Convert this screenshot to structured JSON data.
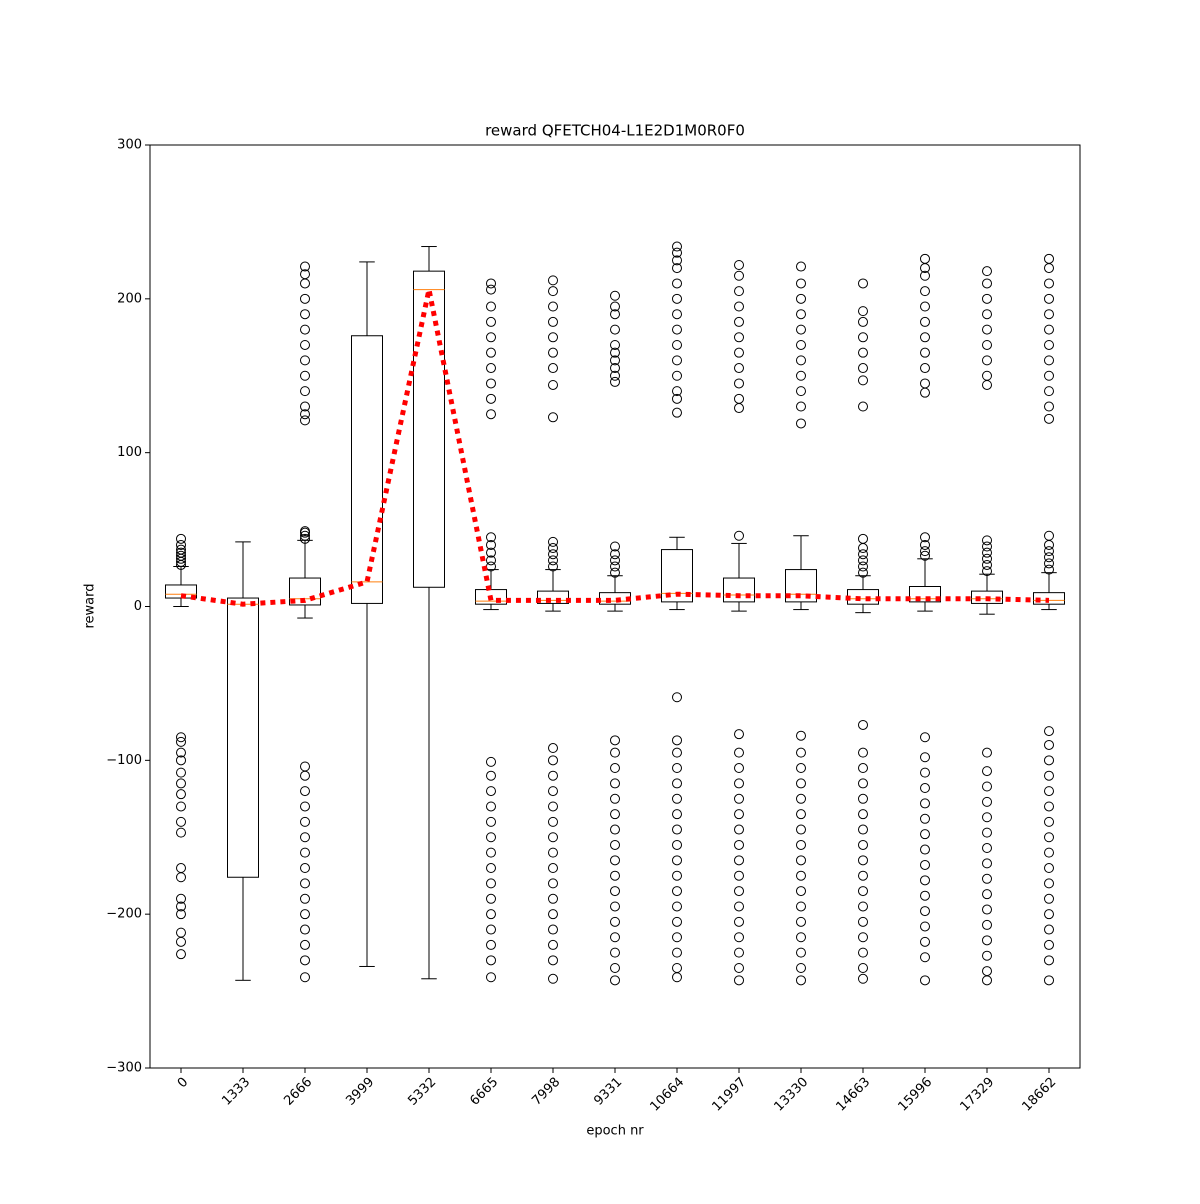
{
  "chart_data": {
    "type": "box",
    "title": "reward QFETCH04-L1E2D1M0R0F0",
    "x_label": "epoch nr",
    "y_label": "reward",
    "categories": [
      "0",
      "1333",
      "2666",
      "3999",
      "5332",
      "6665",
      "7998",
      "9331",
      "10664",
      "11997",
      "13330",
      "14663",
      "15996",
      "17329",
      "18662"
    ],
    "ylim": [
      -300,
      300
    ],
    "yticks": [
      {
        "value": -300,
        "label": "−300"
      },
      {
        "value": -200,
        "label": "−200"
      },
      {
        "value": -100,
        "label": "−100"
      },
      0,
      100,
      200,
      300
    ],
    "box_color": "#000000",
    "median_color": "#ff7f0e",
    "mean_color": "#ff0000",
    "boxes": [
      {
        "whislo": 0,
        "q1": 5.5,
        "med": 8,
        "q3": 14,
        "whishi": 26,
        "fliers": [
          27,
          29,
          31,
          33,
          35,
          37,
          40,
          44,
          -85,
          -88,
          -95,
          -100,
          -108,
          -115,
          -122,
          -130,
          -140,
          -147,
          -170,
          -176,
          -190,
          -195,
          -200,
          -212,
          -218,
          -226
        ]
      },
      {
        "whislo": -243,
        "q1": -176,
        "med": 1.5,
        "q3": 5.5,
        "whishi": 42,
        "fliers": []
      },
      {
        "whislo": -7.5,
        "q1": 1,
        "med": 5,
        "q3": 18.5,
        "whishi": 43,
        "fliers": [
          44,
          46,
          48,
          49,
          121,
          125,
          130,
          140,
          150,
          160,
          170,
          180,
          190,
          200,
          210,
          216,
          221,
          -104,
          -110,
          -120,
          -130,
          -140,
          -150,
          -160,
          -170,
          -180,
          -190,
          -200,
          -210,
          -220,
          -230,
          -241
        ]
      },
      {
        "whislo": -234,
        "q1": 2,
        "med": 16,
        "q3": 176,
        "whishi": 224,
        "fliers": []
      },
      {
        "whislo": -242,
        "q1": 12.5,
        "med": 206,
        "q3": 218,
        "whishi": 234,
        "fliers": []
      },
      {
        "whislo": -2,
        "q1": 1.5,
        "med": 3.5,
        "q3": 11,
        "whishi": 24,
        "fliers": [
          26,
          30,
          35,
          40,
          45,
          125,
          135,
          145,
          155,
          165,
          175,
          185,
          195,
          206,
          210,
          -101,
          -110,
          -120,
          -130,
          -140,
          -150,
          -160,
          -170,
          -180,
          -190,
          -200,
          -210,
          -220,
          -230,
          -241
        ]
      },
      {
        "whislo": -3,
        "q1": 2,
        "med": 4,
        "q3": 10,
        "whishi": 24,
        "fliers": [
          26,
          30,
          34,
          38,
          42,
          123,
          144,
          155,
          165,
          175,
          185,
          195,
          205,
          212,
          -92,
          -100,
          -110,
          -120,
          -130,
          -140,
          -150,
          -160,
          -170,
          -180,
          -190,
          -200,
          -210,
          -220,
          -230,
          -242
        ]
      },
      {
        "whislo": -3,
        "q1": 1.5,
        "med": 3.5,
        "q3": 9,
        "whishi": 20,
        "fliers": [
          22,
          26,
          30,
          34,
          39,
          146,
          150,
          155,
          160,
          165,
          170,
          180,
          190,
          195,
          202,
          -87,
          -95,
          -105,
          -115,
          -125,
          -135,
          -145,
          -155,
          -165,
          -175,
          -185,
          -195,
          -205,
          -215,
          -225,
          -235,
          -243
        ]
      },
      {
        "whislo": -2,
        "q1": 3,
        "med": 8.5,
        "q3": 37,
        "whishi": 45,
        "fliers": [
          126,
          135,
          140,
          150,
          160,
          170,
          180,
          190,
          200,
          210,
          220,
          225,
          230,
          234,
          -59,
          -87,
          -95,
          -105,
          -115,
          -125,
          -135,
          -145,
          -155,
          -165,
          -175,
          -185,
          -195,
          -205,
          -215,
          -225,
          -235,
          -241
        ]
      },
      {
        "whislo": -3,
        "q1": 3,
        "med": 7.5,
        "q3": 18.5,
        "whishi": 41,
        "fliers": [
          46,
          129,
          135,
          145,
          155,
          165,
          175,
          185,
          195,
          205,
          215,
          222,
          -83,
          -95,
          -105,
          -115,
          -125,
          -135,
          -145,
          -155,
          -165,
          -175,
          -185,
          -195,
          -205,
          -215,
          -225,
          -235,
          -243
        ]
      },
      {
        "whislo": -2,
        "q1": 3,
        "med": 8,
        "q3": 24,
        "whishi": 46,
        "fliers": [
          119,
          130,
          140,
          150,
          160,
          170,
          180,
          190,
          200,
          210,
          221,
          -84,
          -95,
          -105,
          -115,
          -125,
          -135,
          -145,
          -155,
          -165,
          -175,
          -185,
          -195,
          -205,
          -215,
          -225,
          -235,
          -243
        ]
      },
      {
        "whislo": -4,
        "q1": 1.5,
        "med": 5,
        "q3": 11,
        "whishi": 20,
        "fliers": [
          22,
          26,
          30,
          34,
          38,
          44,
          130,
          147,
          155,
          165,
          175,
          185,
          192,
          210,
          -77,
          -95,
          -105,
          -115,
          -125,
          -135,
          -145,
          -155,
          -165,
          -175,
          -185,
          -195,
          -205,
          -215,
          -225,
          -235,
          -242
        ]
      },
      {
        "whislo": -3,
        "q1": 3,
        "med": 5,
        "q3": 13,
        "whishi": 31,
        "fliers": [
          33,
          36,
          40,
          45,
          139,
          145,
          155,
          165,
          175,
          185,
          195,
          205,
          215,
          220,
          226,
          -85,
          -98,
          -108,
          -118,
          -128,
          -138,
          -148,
          -158,
          -168,
          -178,
          -188,
          -198,
          -208,
          -218,
          -228,
          -243
        ]
      },
      {
        "whislo": -5,
        "q1": 2,
        "med": 5,
        "q3": 10,
        "whishi": 21,
        "fliers": [
          23,
          27,
          31,
          35,
          39,
          43,
          144,
          150,
          160,
          170,
          180,
          190,
          200,
          210,
          218,
          -95,
          -107,
          -117,
          -127,
          -137,
          -147,
          -157,
          -167,
          -177,
          -187,
          -197,
          -207,
          -217,
          -227,
          -237,
          -243
        ]
      },
      {
        "whislo": -2,
        "q1": 1.5,
        "med": 4,
        "q3": 9,
        "whishi": 22,
        "fliers": [
          24,
          28,
          32,
          36,
          40,
          46,
          122,
          130,
          140,
          150,
          160,
          170,
          180,
          190,
          200,
          210,
          220,
          226,
          -81,
          -90,
          -100,
          -110,
          -120,
          -130,
          -140,
          -150,
          -160,
          -170,
          -180,
          -190,
          -200,
          -210,
          -220,
          -230,
          -243
        ]
      }
    ],
    "means": [
      7,
      1.5,
      4,
      16,
      206,
      4,
      4,
      4,
      8,
      7,
      7,
      5,
      5,
      5,
      4
    ]
  }
}
